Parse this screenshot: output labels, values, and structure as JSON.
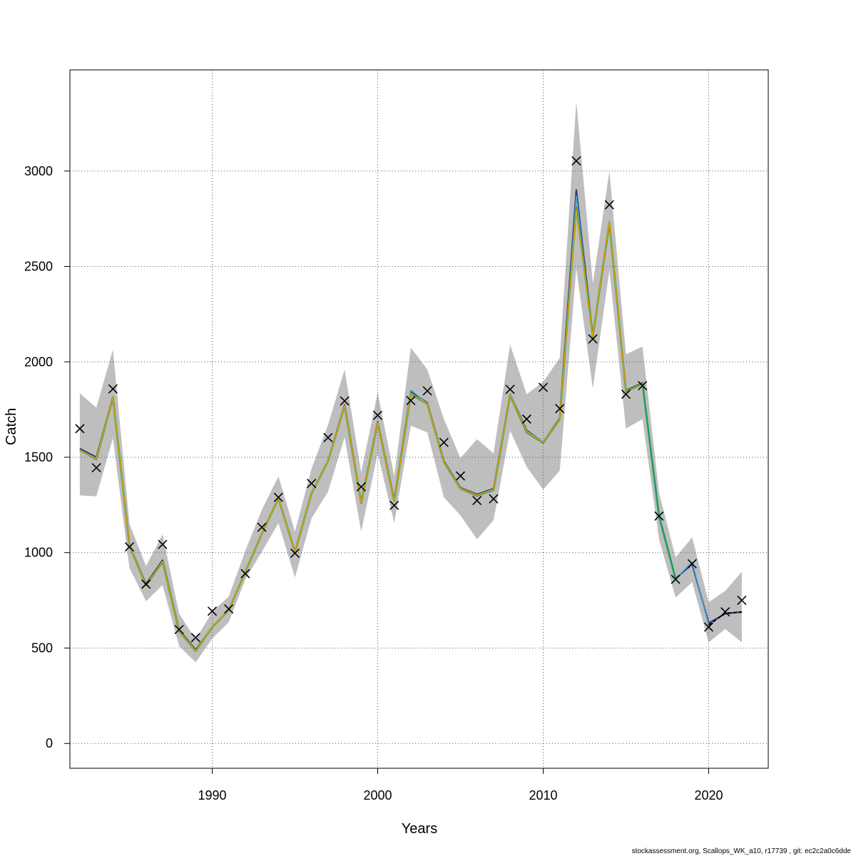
{
  "chart_data": {
    "type": "line",
    "xlabel": "Years",
    "ylabel": "Catch",
    "xlim": [
      1981.4,
      2023.6
    ],
    "ylim": [
      -130,
      3530
    ],
    "x_ticks": [
      1990,
      2000,
      2010,
      2020
    ],
    "y_ticks": [
      0,
      500,
      1000,
      1500,
      2000,
      2500,
      3000
    ],
    "grid": true,
    "footer": "stockassessment.org, Scallops_WK_a10, r17739 , git: ec2c2a0c6dde",
    "colors": {
      "band": "#bebebe",
      "grid": "#555555",
      "series": [
        "#2f2f6f",
        "#46a4d8",
        "#21a05e",
        "#8e9a2e",
        "#e69f00"
      ],
      "observed": "#000000"
    },
    "band": {
      "x": [
        1982,
        1983,
        1984,
        1985,
        1986,
        1987,
        1988,
        1989,
        1990,
        1991,
        1992,
        1993,
        1994,
        1995,
        1996,
        1997,
        1998,
        1999,
        2000,
        2001,
        2002,
        2003,
        2004,
        2005,
        2006,
        2007,
        2008,
        2009,
        2010,
        2011,
        2012,
        2013,
        2014,
        2015,
        2016,
        2017,
        2018,
        2019,
        2020,
        2021,
        2022
      ],
      "lower": [
        1300,
        1295,
        1600,
        920,
        745,
        830,
        510,
        425,
        550,
        635,
        860,
        1005,
        1155,
        870,
        1180,
        1320,
        1605,
        1110,
        1520,
        1155,
        1665,
        1630,
        1290,
        1195,
        1070,
        1170,
        1640,
        1450,
        1330,
        1430,
        2490,
        1860,
        2480,
        1650,
        1700,
        1070,
        765,
        845,
        530,
        600,
        530
      ],
      "upper": [
        1835,
        1760,
        2065,
        1150,
        930,
        1095,
        680,
        545,
        690,
        770,
        1010,
        1225,
        1400,
        1110,
        1440,
        1670,
        1960,
        1420,
        1840,
        1400,
        2075,
        1960,
        1700,
        1495,
        1595,
        1520,
        2090,
        1830,
        1895,
        2020,
        3365,
        2410,
        3000,
        2040,
        2080,
        1315,
        975,
        1080,
        740,
        800,
        900
      ]
    },
    "observed": {
      "x": [
        1982,
        1983,
        1984,
        1985,
        1986,
        1987,
        1988,
        1989,
        1990,
        1991,
        1992,
        1993,
        1994,
        1995,
        1996,
        1997,
        1998,
        1999,
        2000,
        2001,
        2002,
        2003,
        2004,
        2005,
        2006,
        2007,
        2008,
        2009,
        2010,
        2011,
        2012,
        2013,
        2014,
        2015,
        2016,
        2017,
        2018,
        2019,
        2020,
        2021,
        2022
      ],
      "values": [
        1650,
        1445,
        1858,
        1030,
        835,
        1043,
        597,
        555,
        693,
        705,
        890,
        1133,
        1290,
        997,
        1363,
        1603,
        1795,
        1345,
        1720,
        1248,
        1797,
        1848,
        1578,
        1402,
        1273,
        1282,
        1856,
        1700,
        1866,
        1755,
        3053,
        2120,
        2823,
        1830,
        1875,
        1192,
        860,
        942,
        610,
        690,
        750
      ]
    },
    "series": [
      {
        "x": [
          1982,
          1983,
          1984,
          1985,
          1986,
          1987,
          1988,
          1989,
          1990,
          1991,
          1992,
          1993,
          1994,
          1995,
          1996,
          1997,
          1998,
          1999,
          2000,
          2001,
          2002,
          2003,
          2004,
          2005,
          2006,
          2007,
          2008,
          2009,
          2010,
          2011,
          2012,
          2013,
          2014,
          2015,
          2016,
          2017,
          2018,
          2019,
          2020,
          2021,
          2022
        ],
        "values": [
          1545,
          1500,
          1815,
          1040,
          835,
          960,
          595,
          490,
          610,
          700,
          900,
          1100,
          1285,
          1005,
          1310,
          1480,
          1775,
          1265,
          1685,
          1275,
          1845,
          1785,
          1480,
          1340,
          1305,
          1335,
          1830,
          1640,
          1580,
          1705,
          2900,
          2130,
          2725,
          1850,
          1890,
          1195,
          865,
          940,
          630,
          680,
          690
        ]
      },
      {
        "x": [
          1982,
          1983,
          1984,
          1985,
          1986,
          1987,
          1988,
          1989,
          1990,
          1991,
          1992,
          1993,
          1994,
          1995,
          1996,
          1997,
          1998,
          1999,
          2000,
          2001,
          2002,
          2003,
          2004,
          2005,
          2006,
          2007,
          2008,
          2009,
          2010,
          2011,
          2012,
          2013,
          2014,
          2015,
          2016,
          2017,
          2018,
          2019,
          2020
        ],
        "values": [
          1540,
          1495,
          1815,
          1040,
          830,
          955,
          590,
          487,
          612,
          702,
          902,
          1102,
          1287,
          1007,
          1312,
          1482,
          1772,
          1262,
          1682,
          1272,
          1852,
          1782,
          1478,
          1338,
          1302,
          1332,
          1832,
          1637,
          1582,
          1702,
          2870,
          2125,
          2725,
          1848,
          1888,
          1193,
          862,
          952,
          620
        ]
      },
      {
        "x": [
          1982,
          1983,
          1984,
          1985,
          1986,
          1987,
          1988,
          1989,
          1990,
          1991,
          1992,
          1993,
          1994,
          1995,
          1996,
          1997,
          1998,
          1999,
          2000,
          2001,
          2002,
          2003,
          2004,
          2005,
          2006,
          2007,
          2008,
          2009,
          2010,
          2011,
          2012,
          2013,
          2014,
          2015,
          2016,
          2017,
          2018
        ],
        "values": [
          1538,
          1490,
          1812,
          1038,
          828,
          952,
          588,
          484,
          610,
          700,
          900,
          1100,
          1285,
          1005,
          1310,
          1480,
          1770,
          1260,
          1680,
          1270,
          1830,
          1780,
          1475,
          1335,
          1298,
          1328,
          1825,
          1630,
          1575,
          1700,
          2810,
          2135,
          2730,
          1845,
          1885,
          1190,
          862
        ]
      },
      {
        "x": [
          1982,
          1983,
          1984,
          1985,
          1986,
          1987,
          1988,
          1989,
          1990,
          1991,
          1992,
          1993,
          1994,
          1995,
          1996,
          1997,
          1998,
          1999,
          2000,
          2001,
          2002,
          2003,
          2004,
          2005,
          2006,
          2007,
          2008,
          2009,
          2010,
          2011,
          2012,
          2013,
          2014,
          2015,
          2016
        ],
        "values": [
          1536,
          1492,
          1814,
          1040,
          830,
          953,
          589,
          485,
          611,
          701,
          901,
          1101,
          1286,
          1006,
          1311,
          1481,
          1771,
          1261,
          1681,
          1271,
          1832,
          1781,
          1476,
          1336,
          1300,
          1330,
          1828,
          1634,
          1578,
          1702,
          2800,
          2130,
          2735,
          1846,
          1887
        ]
      },
      {
        "x": [
          1982,
          1983,
          1984,
          1985,
          1986,
          1987,
          1988,
          1989,
          1990,
          1991,
          1992,
          1993,
          1994,
          1995,
          1996,
          1997,
          1998,
          1999,
          2000,
          2001,
          2002,
          2003,
          2004,
          2005,
          2006,
          2007,
          2008,
          2009,
          2010,
          2011,
          2012,
          2013,
          2014,
          2015
        ],
        "values": [
          1537,
          1493,
          1813,
          1039,
          831,
          954,
          590,
          486,
          611,
          701,
          901,
          1101,
          1286,
          1006,
          1311,
          1481,
          1771,
          1261,
          1681,
          1271,
          1833,
          1781,
          1477,
          1337,
          1301,
          1331,
          1829,
          1635,
          1579,
          1703,
          2795,
          2132,
          2733,
          1847
        ]
      }
    ],
    "projection": {
      "x": [
        2020,
        2021,
        2022
      ],
      "values": [
        620,
        683,
        688
      ]
    }
  }
}
